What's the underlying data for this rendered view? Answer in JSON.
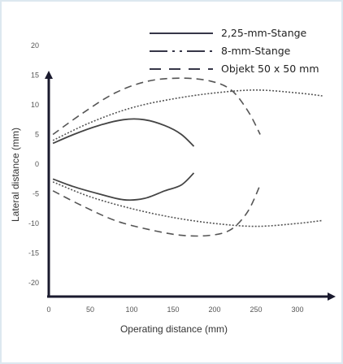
{
  "chart_data": {
    "type": "line",
    "title": "",
    "xlabel": "Operating distance (mm)",
    "ylabel": "Lateral distance (mm)",
    "xlim": [
      0,
      330
    ],
    "ylim": [
      -22,
      22
    ],
    "x_ticks": [
      "0",
      "50",
      "100",
      "150",
      "200",
      "250",
      "300"
    ],
    "x_tick_values": [
      0,
      50,
      100,
      150,
      200,
      250,
      300
    ],
    "y_ticks": [
      "20",
      "15",
      "10",
      "5",
      "0",
      "-5",
      "-10",
      "-15",
      "-20"
    ],
    "y_tick_values": [
      20,
      15,
      10,
      5,
      0,
      -5,
      -10,
      -15,
      -20
    ],
    "legend_position": "top-right",
    "series": [
      {
        "name": "2,25-mm-Stange",
        "style": "solid",
        "color": "#444444",
        "segments": [
          [
            [
              5,
              3.5
            ],
            [
              30,
              5
            ],
            [
              60,
              6.5
            ],
            [
              90,
              7.5
            ],
            [
              115,
              7.5
            ],
            [
              140,
              6.5
            ],
            [
              160,
              5
            ],
            [
              175,
              3
            ]
          ],
          [
            [
              5,
              -2.5
            ],
            [
              30,
              -3.8
            ],
            [
              60,
              -5
            ],
            [
              90,
              -6
            ],
            [
              115,
              -5.8
            ],
            [
              140,
              -4.5
            ],
            [
              160,
              -3.5
            ],
            [
              175,
              -1.5
            ]
          ]
        ]
      },
      {
        "name": "8-mm-Stange",
        "style": "dashdot",
        "color": "#555555",
        "segments": [
          [
            [
              5,
              4
            ],
            [
              50,
              7
            ],
            [
              100,
              9.5
            ],
            [
              150,
              11
            ],
            [
              200,
              12
            ],
            [
              250,
              12.5
            ],
            [
              300,
              12
            ],
            [
              330,
              11.5
            ]
          ],
          [
            [
              5,
              -3
            ],
            [
              50,
              -5.5
            ],
            [
              100,
              -7.5
            ],
            [
              150,
              -9
            ],
            [
              200,
              -10
            ],
            [
              250,
              -10.5
            ],
            [
              300,
              -10
            ],
            [
              330,
              -9.5
            ]
          ]
        ]
      },
      {
        "name": "Objekt 50 x 50 mm",
        "style": "dashed",
        "color": "#555555",
        "segments": [
          [
            [
              5,
              5
            ],
            [
              40,
              8.5
            ],
            [
              80,
              12
            ],
            [
              120,
              14
            ],
            [
              160,
              14.5
            ],
            [
              195,
              14
            ],
            [
              220,
              12.5
            ],
            [
              240,
              9
            ],
            [
              255,
              5
            ]
          ],
          [
            [
              5,
              -4.5
            ],
            [
              40,
              -7
            ],
            [
              80,
              -9.5
            ],
            [
              120,
              -11
            ],
            [
              160,
              -12
            ],
            [
              195,
              -12
            ],
            [
              220,
              -11
            ],
            [
              240,
              -8
            ],
            [
              255,
              -3.5
            ]
          ]
        ]
      }
    ]
  }
}
